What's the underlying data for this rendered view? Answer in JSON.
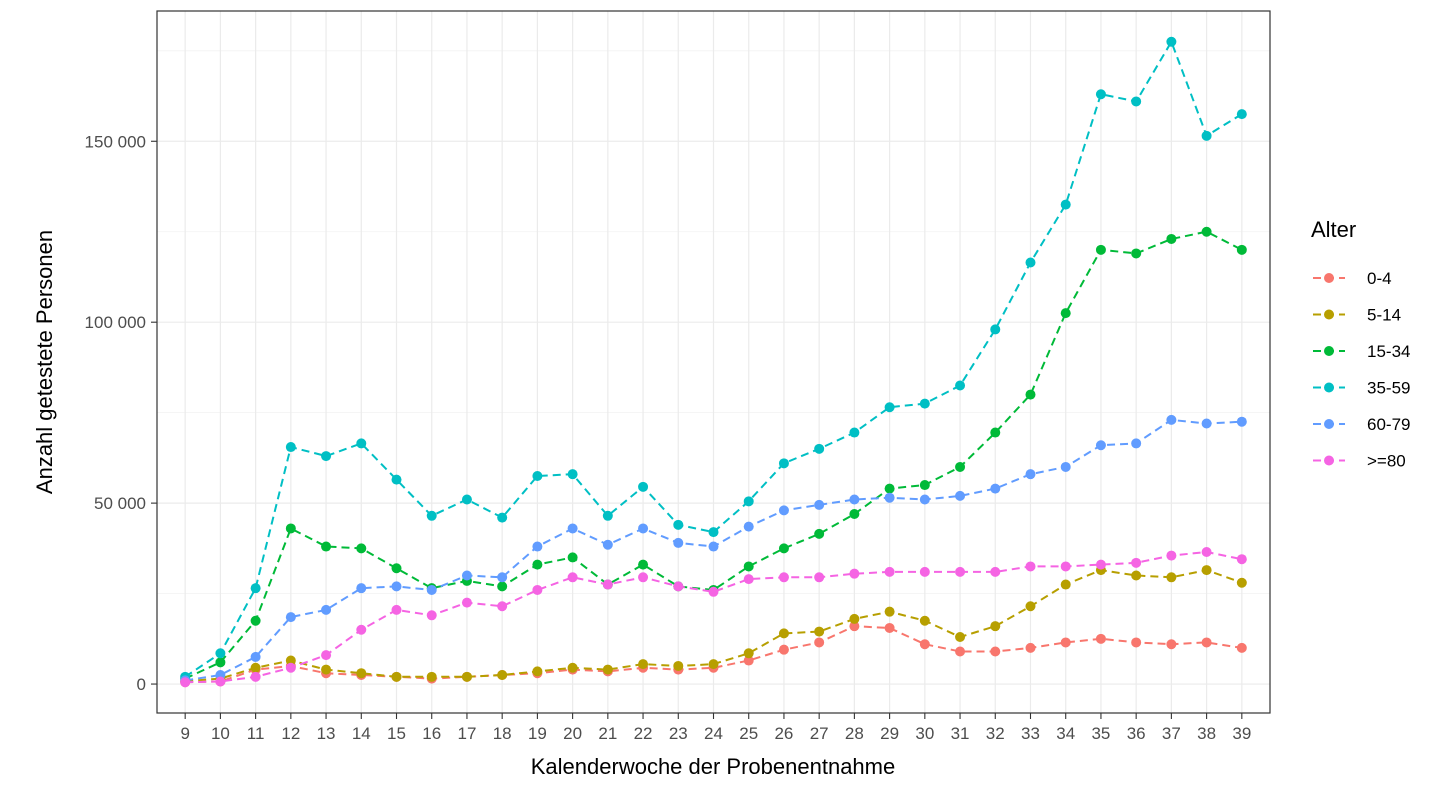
{
  "chart_data": {
    "type": "line",
    "xlabel": "Kalenderwoche der Probenentnahme",
    "ylabel": "Anzahl getestete Personen",
    "x": [
      9,
      10,
      11,
      12,
      13,
      14,
      15,
      16,
      17,
      18,
      19,
      20,
      21,
      22,
      23,
      24,
      25,
      26,
      27,
      28,
      29,
      30,
      31,
      32,
      33,
      34,
      35,
      36,
      37,
      38,
      39
    ],
    "xlim": [
      8.2,
      39.8
    ],
    "ylim": [
      -8000,
      186000
    ],
    "yticks": [
      {
        "value": 0,
        "label": "0"
      },
      {
        "value": 50000,
        "label": "50 000"
      },
      {
        "value": 100000,
        "label": "100 000"
      },
      {
        "value": 150000,
        "label": "150 000"
      }
    ],
    "grid": true,
    "legend": {
      "title": "Alter",
      "position": "right"
    },
    "series": [
      {
        "name": "0-4",
        "color": "#F8766D",
        "values": [
          500,
          700,
          4000,
          5000,
          3000,
          2500,
          2000,
          1500,
          2000,
          2500,
          3000,
          4000,
          3500,
          4500,
          4000,
          4500,
          6500,
          9500,
          11500,
          16000,
          15500,
          11000,
          9000,
          9000,
          10000,
          11500,
          12500,
          11500,
          11000,
          11500,
          10000
        ]
      },
      {
        "name": "5-14",
        "color": "#B79F00",
        "values": [
          800,
          1500,
          4500,
          6500,
          4000,
          3000,
          2000,
          2000,
          2000,
          2500,
          3500,
          4500,
          4000,
          5500,
          5000,
          5500,
          8500,
          14000,
          14500,
          18000,
          20000,
          17500,
          13000,
          16000,
          21500,
          27500,
          31500,
          30000,
          29500,
          31500,
          28000
        ]
      },
      {
        "name": "15-34",
        "color": "#00BA38",
        "values": [
          1500,
          6000,
          17500,
          43000,
          38000,
          37500,
          32000,
          26500,
          28500,
          27000,
          33000,
          35000,
          27500,
          33000,
          27000,
          26000,
          32500,
          37500,
          41500,
          47000,
          54000,
          55000,
          60000,
          69500,
          80000,
          102500,
          120000,
          119000,
          123000,
          125000,
          120000
        ]
      },
      {
        "name": "35-59",
        "color": "#00BFC4",
        "values": [
          2000,
          8500,
          26500,
          65500,
          63000,
          66500,
          56500,
          46500,
          51000,
          46000,
          57500,
          58000,
          46500,
          54500,
          44000,
          42000,
          50500,
          61000,
          65000,
          69500,
          76500,
          77500,
          82500,
          98000,
          116500,
          132500,
          163000,
          161000,
          177500,
          151500,
          157500
        ]
      },
      {
        "name": "60-79",
        "color": "#619CFF",
        "values": [
          1000,
          2500,
          7500,
          18500,
          20500,
          26500,
          27000,
          26000,
          30000,
          29500,
          38000,
          43000,
          38500,
          43000,
          39000,
          38000,
          43500,
          48000,
          49500,
          51000,
          51500,
          51000,
          52000,
          54000,
          58000,
          60000,
          66000,
          66500,
          73000,
          72000,
          72500
        ]
      },
      {
        "name": ">=80",
        "color": "#F564E3",
        "values": [
          500,
          700,
          2000,
          4500,
          8000,
          15000,
          20500,
          19000,
          22500,
          21500,
          26000,
          29500,
          27500,
          29500,
          27000,
          25500,
          29000,
          29500,
          29500,
          30500,
          31000,
          31000,
          31000,
          31000,
          32500,
          32500,
          33000,
          33500,
          35500,
          36500,
          34500
        ]
      }
    ]
  }
}
